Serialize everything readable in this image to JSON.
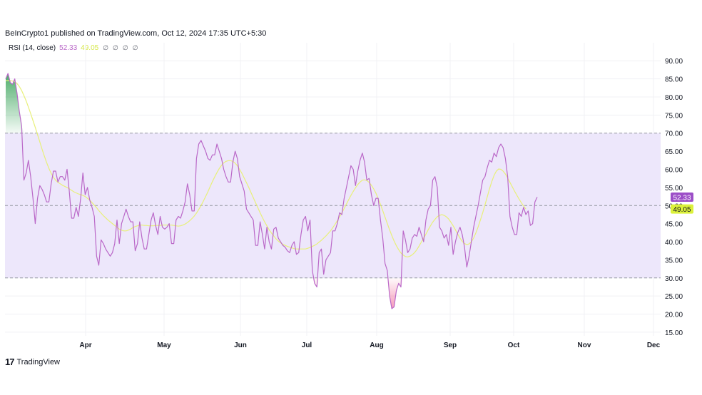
{
  "header": {
    "publisher": "BeInCrypto1 published on TradingView.com, Oct 12, 2024 17:35 UTC+5:30"
  },
  "legend": {
    "indicator": "RSI (14, close)",
    "rsi_value": "52.33",
    "ma_value": "49.05",
    "na_markers": [
      "∅",
      "∅",
      "∅",
      "∅"
    ]
  },
  "footer": {
    "logo_mark": "17",
    "logo_text": "TradingView"
  },
  "colors": {
    "rsi_line": "#ba68c8",
    "ma_line": "#e8f07a",
    "band_fill": "#ede7fb",
    "overbought_fill": "#2e9e4f",
    "oversold_fill": "#e91e63",
    "rsi_tag": "#9c4ec7",
    "ma_tag": "#dcf13b"
  },
  "chart_data": {
    "type": "line",
    "title": "",
    "ylim": [
      14,
      93
    ],
    "y_ticks": [
      "90.00",
      "85.00",
      "80.00",
      "75.00",
      "70.00",
      "65.00",
      "60.00",
      "55.00",
      "50.00",
      "45.00",
      "40.00",
      "35.00",
      "30.00",
      "25.00",
      "20.00",
      "15.00"
    ],
    "x_ticks": [
      "Apr",
      "May",
      "Jun",
      "Jul",
      "Aug",
      "Sep",
      "Oct",
      "Nov",
      "Dec"
    ],
    "bands": {
      "upper": 70,
      "middle": 50,
      "lower": 30
    },
    "last_values": {
      "rsi": "52.33",
      "ma": "49.05"
    },
    "series": [
      {
        "values": [
          85,
          86.5,
          84,
          83.5,
          85,
          81,
          76,
          72,
          57,
          59,
          62.5,
          58,
          52,
          45,
          52,
          55.5,
          54.5,
          53,
          51,
          51,
          56,
          59.5,
          59.5,
          56.5,
          58,
          58,
          57,
          60,
          54,
          46.5,
          46.5,
          49.5,
          47,
          52,
          59,
          53,
          55,
          51.5,
          49.5,
          47,
          36,
          33.5,
          40.5,
          39.5,
          38,
          37,
          36,
          37,
          39.5,
          46,
          39.5,
          45,
          47,
          49,
          47,
          45.5,
          45.5,
          37.5,
          39.5,
          45.5,
          41,
          38,
          38,
          42,
          46,
          48,
          44.5,
          42,
          47,
          44,
          43.5,
          44,
          45,
          39.5,
          39.5,
          46,
          47,
          46.5,
          48.5,
          51,
          56,
          53,
          48.5,
          48.5,
          63,
          67,
          68,
          66.5,
          65,
          63,
          62.5,
          64,
          64,
          67,
          65,
          63,
          60,
          58,
          56.5,
          56.5,
          62,
          65,
          63,
          58,
          56,
          54,
          49,
          48,
          47,
          46,
          39,
          39,
          45.5,
          42,
          38,
          44,
          40,
          38,
          43.5,
          44,
          41,
          40,
          39,
          38.5,
          37.5,
          37,
          39,
          40,
          36.5,
          37,
          42,
          46,
          47,
          43,
          46,
          32,
          28.5,
          27.5,
          37,
          38,
          31,
          35,
          36,
          37,
          43,
          43,
          45,
          48,
          47.5,
          52,
          55,
          58,
          61,
          60,
          55.5,
          59.5,
          62.5,
          64.5,
          62,
          57,
          57.5,
          53,
          50,
          52,
          52,
          46,
          41,
          34,
          32,
          25,
          21.5,
          22,
          26.5,
          28.5,
          27.5,
          43,
          40.5,
          37,
          38,
          41,
          42,
          41.5,
          44,
          42,
          40,
          46,
          49,
          50,
          57,
          58,
          55,
          44,
          43,
          41,
          42,
          39,
          44,
          36.5,
          40,
          42.5,
          44,
          42,
          38.5,
          33,
          36,
          40,
          44,
          47,
          50,
          53.5,
          57,
          58,
          60.5,
          62.5,
          62,
          64.5,
          63.5,
          66,
          67,
          66,
          63,
          58,
          47,
          44,
          42,
          42,
          48,
          47,
          49.5,
          47.5,
          48.5,
          44.5,
          45,
          51,
          52.33
        ]
      },
      {
        "values": [
          84.5,
          84.5,
          84.5,
          84.4,
          84.2,
          83.7,
          82.9,
          81.8,
          80.4,
          78.9,
          77.2,
          75.4,
          73.5,
          71.6,
          69.6,
          67.6,
          65.6,
          63.7,
          61.9,
          60.3,
          58.9,
          57.8,
          57,
          56.4,
          56,
          55.6,
          55.3,
          55,
          54.6,
          54.2,
          53.8,
          53.5,
          53.2,
          53,
          52.8,
          52.5,
          52,
          51.5,
          50.8,
          50.1,
          49.4,
          48.6,
          47.9,
          47.2,
          46.6,
          46,
          45.5,
          45,
          44.5,
          44,
          43.5,
          43.2,
          43,
          43,
          43.2,
          43.5,
          43.9,
          44.2,
          44.4,
          44.6,
          44.6,
          44.5,
          44.5,
          44.4,
          44.4,
          44.4,
          44.5,
          44.5,
          44.5,
          44.6,
          44.6,
          44.6,
          44.6,
          44.6,
          44.5,
          44.4,
          44.3,
          44.4,
          44.6,
          44.9,
          45.3,
          45.8,
          46.4,
          47.1,
          47.9,
          48.9,
          50,
          51.2,
          52.5,
          53.8,
          55.2,
          56.6,
          57.9,
          59.1,
          60.2,
          61.1,
          61.8,
          62.2,
          62.4,
          62.4,
          62.2,
          61.7,
          61,
          60,
          58.9,
          57.6,
          56.3,
          55,
          53.6,
          52.2,
          50.8,
          49.4,
          48,
          46.7,
          45.5,
          44.4,
          43.3,
          42.4,
          41.6,
          40.8,
          40.2,
          39.7,
          39.3,
          39,
          38.7,
          38.5,
          38.3,
          38.1,
          38,
          38,
          38,
          38,
          38,
          38.2,
          38.4,
          38.7,
          39,
          39.4,
          39.9,
          40.4,
          41,
          41.6,
          42.3,
          43,
          43.9,
          44.8,
          45.8,
          46.9,
          48,
          49.2,
          50.4,
          51.6,
          52.8,
          53.9,
          54.9,
          55.8,
          56.5,
          57,
          57.1,
          56.9,
          56.4,
          55.6,
          54.6,
          53.4,
          51.9,
          50.3,
          48.6,
          46.8,
          45,
          43.3,
          41.7,
          40.2,
          38.9,
          37.8,
          36.9,
          36.3,
          35.9,
          35.8,
          36,
          36.4,
          37,
          37.8,
          38.8,
          39.9,
          41,
          42.1,
          43.3,
          44.4,
          45.4,
          46.2,
          46.9,
          47.3,
          47.5,
          47.3,
          46.9,
          46.3,
          45.4,
          44.4,
          43.3,
          42.1,
          41,
          40.1,
          39.5,
          39.2,
          39.4,
          40,
          41,
          42.4,
          44.1,
          46,
          48,
          50.2,
          52.4,
          54.6,
          56.6,
          58.3,
          59.5,
          60.1,
          60,
          59.5,
          58.7,
          57.6,
          56.4,
          55.2,
          54,
          52.9,
          51.8,
          50.8,
          49.9,
          49.05
        ]
      }
    ]
  }
}
